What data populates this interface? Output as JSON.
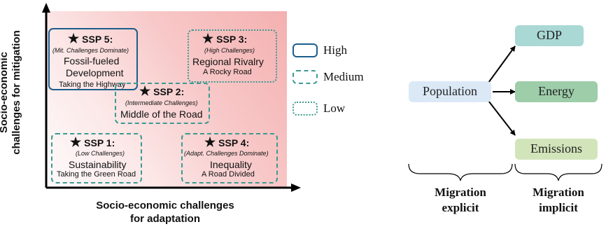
{
  "ssp_chart": {
    "y_axis_title_line1": "Socio-economic",
    "y_axis_title_line2": "challenges for mitigation",
    "x_axis_title_line1": "Socio-economic challenges",
    "x_axis_title_line2": "for adaptation",
    "scenarios": [
      {
        "id": "SSP 5:",
        "subtitle": "(Mit. Challenges Dominate)",
        "name_line1": "Fossil-fueled",
        "name_line2": "Development",
        "tagline": "Taking the Highway",
        "level": "High"
      },
      {
        "id": "SSP 3:",
        "subtitle": "(High Challenges)",
        "name_line1": "Regional Rivalry",
        "tagline": "A Rocky Road",
        "level": "Low"
      },
      {
        "id": "SSP 2:",
        "subtitle": "(Intermediate Challenges)",
        "name_line1": "Middle of the Road",
        "level": "Medium"
      },
      {
        "id": "SSP 1:",
        "subtitle": "(Low Challenges)",
        "name_line1": "Sustainability",
        "tagline": "Taking the Green Road",
        "level": "Medium"
      },
      {
        "id": "SSP 4:",
        "subtitle": "(Adapt. Challenges Dominate)",
        "name_line1": "Inequality",
        "tagline": "A Road Divided",
        "level": "Medium"
      }
    ],
    "legend": [
      "High",
      "Medium",
      "Low"
    ],
    "colors": {
      "high_border": "#1c5d8c",
      "medium_low_border": "#3d9a92",
      "background": "#f4b0b0"
    },
    "icons": {
      "scenario_marker": "star-icon"
    }
  },
  "flow_diagram": {
    "nodes": {
      "population": "Population",
      "gdp": "GDP",
      "energy": "Energy",
      "emissions": "Emissions"
    },
    "edges": [
      {
        "from": "Population",
        "to": "GDP"
      },
      {
        "from": "Population",
        "to": "Energy"
      },
      {
        "from": "Population",
        "to": "Emissions"
      }
    ],
    "groups": {
      "explicit_line1": "Migration",
      "explicit_line2": "explicit",
      "implicit_line1": "Migration",
      "implicit_line2": "implicit"
    },
    "colors": {
      "population": "#dbe9f7",
      "gdp": "#a9d8d5",
      "energy": "#9dcda9",
      "emissions": "#d2e5ba"
    }
  }
}
